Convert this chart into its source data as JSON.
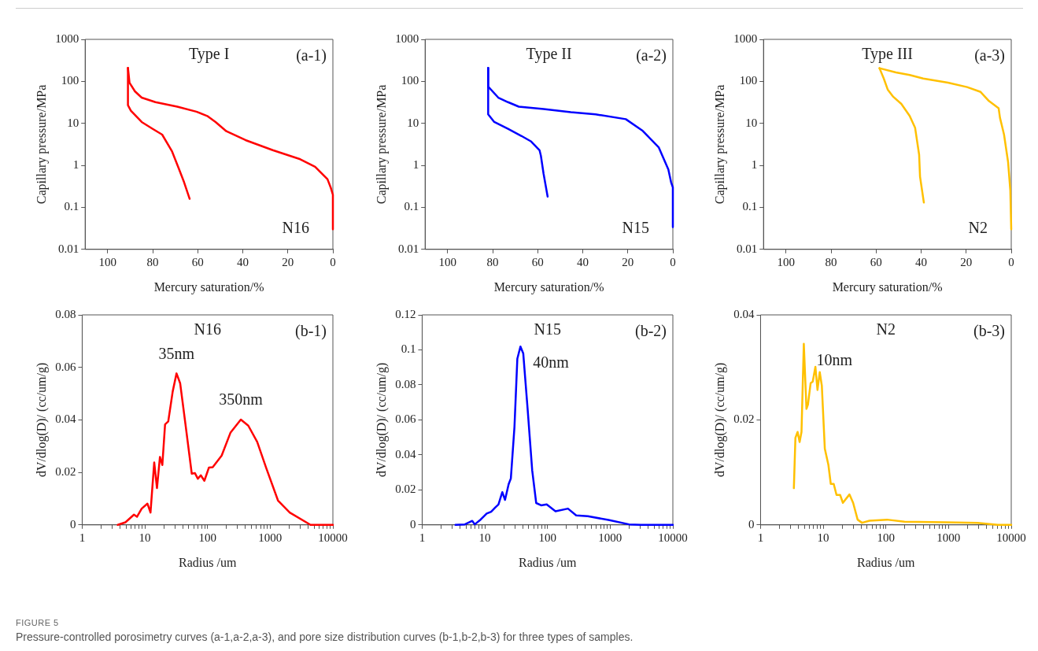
{
  "chart_data": [
    {
      "type": "line",
      "title": "Type I",
      "xlabel": "Mercury saturation/%",
      "ylabel": "Capillary pressure/MPa",
      "log": "y",
      "grid": false,
      "legend": false,
      "marker": "none",
      "line_style": "solid",
      "xlim": [
        110,
        0
      ],
      "xticks": [
        100,
        80,
        60,
        40,
        20,
        0
      ],
      "ylim": [
        0.01,
        1000
      ],
      "yticks": [
        0.01,
        0.1,
        1,
        10,
        100,
        1000
      ],
      "annotations": [
        "(a-1)",
        "N16"
      ],
      "series": [
        {
          "color": "#ff0000",
          "x": [
            0,
            0,
            1,
            2.4,
            7.9,
            14.5,
            26.7,
            38.8,
            47.3,
            52.1,
            55.8,
            60.6,
            69.1,
            78.8,
            84.9,
            87.9,
            90.3,
            91
          ],
          "values": [
            0.03,
            0.2,
            0.3,
            0.47,
            0.93,
            1.4,
            2.3,
            4.0,
            6.5,
            10.8,
            15,
            19,
            25,
            32,
            41,
            58,
            93,
            210
          ]
        },
        {
          "color": "#ff0000",
          "x": [
            91,
            91,
            89.7,
            84.9,
            80,
            75.8,
            71.5,
            68.5,
            66.1,
            63.6
          ],
          "values": [
            210,
            27,
            20,
            10.8,
            7.4,
            5.4,
            2.2,
            0.86,
            0.4,
            0.16
          ]
        }
      ]
    },
    {
      "type": "line",
      "title": "Type II",
      "xlabel": "Mercury saturation/%",
      "ylabel": "Capillary pressure/MPa",
      "log": "y",
      "grid": false,
      "legend": false,
      "marker": "none",
      "line_style": "solid",
      "xlim": [
        110,
        0
      ],
      "xticks": [
        100,
        80,
        60,
        40,
        20,
        0
      ],
      "ylim": [
        0.01,
        1000
      ],
      "yticks": [
        0.01,
        0.1,
        1,
        10,
        100,
        1000
      ],
      "annotations": [
        "(a-2)",
        "N15"
      ],
      "series": [
        {
          "color": "#0000ff",
          "x": [
            0,
            0,
            0.8,
            2.0,
            6.3,
            13.6,
            20.9,
            34.3,
            45.3,
            57.4,
            68.4,
            73.2,
            77.5,
            81.8,
            82
          ],
          "values": [
            0.034,
            0.3,
            0.4,
            0.8,
            2.7,
            6.8,
            12.6,
            16.4,
            18.5,
            22,
            25,
            32,
            41,
            73,
            210
          ]
        },
        {
          "color": "#0000ff",
          "x": [
            82,
            82,
            79.3,
            73.2,
            67.2,
            62.9,
            59.2,
            58.6,
            57.4,
            55.6
          ],
          "values": [
            210,
            16.4,
            10.8,
            7.4,
            5.0,
            3.7,
            2.3,
            1.7,
            0.63,
            0.18
          ]
        }
      ]
    },
    {
      "type": "line",
      "title": "Type III",
      "xlabel": "Mercury saturation/%",
      "ylabel": "Capillary pressure/MPa",
      "log": "y",
      "grid": false,
      "legend": false,
      "marker": "none",
      "line_style": "solid",
      "xlim": [
        110,
        0
      ],
      "xticks": [
        100,
        80,
        60,
        40,
        20,
        0
      ],
      "ylim": [
        0.01,
        1000
      ],
      "yticks": [
        0.01,
        0.1,
        1,
        10,
        100,
        1000
      ],
      "annotations": [
        "(a-3)",
        "N2"
      ],
      "series": [
        {
          "color": "#ffc000",
          "x": [
            0,
            0.4,
            1.4,
            3.2,
            5.0,
            5.6,
            9.9,
            13.6,
            19.6,
            28.1,
            39.1,
            45.1,
            51.2,
            58.5
          ],
          "values": [
            0.03,
            0.25,
            1.2,
            5.4,
            13.6,
            23,
            34,
            56,
            73,
            93,
            117,
            142,
            163,
            206
          ]
        },
        {
          "color": "#ffc000",
          "x": [
            58.5,
            56.6,
            54.8,
            52.4,
            48.8,
            45.1,
            42.7,
            40.9,
            40.5,
            38.8
          ],
          "values": [
            206,
            117,
            63,
            43,
            29,
            15,
            7.9,
            1.8,
            0.54,
            0.13
          ]
        }
      ]
    },
    {
      "type": "line",
      "title": "N16",
      "xlabel": "Radius /um",
      "ylabel": "dV/dlog(D)/ (cc/um/g)",
      "log": "x",
      "grid": false,
      "legend": false,
      "marker": "none",
      "line_style": "solid",
      "xlim": [
        1,
        10000
      ],
      "xticks": [
        1,
        {
          "value": 2,
          "label": null
        },
        {
          "value": 3,
          "label": null
        },
        {
          "value": 4,
          "label": null
        },
        {
          "value": 5,
          "label": null
        },
        {
          "value": 6,
          "label": null
        },
        {
          "value": 7,
          "label": null
        },
        {
          "value": 8,
          "label": null
        },
        {
          "value": 9,
          "label": null
        },
        10,
        {
          "value": 20,
          "label": null
        },
        {
          "value": 30,
          "label": null
        },
        {
          "value": 40,
          "label": null
        },
        {
          "value": 50,
          "label": null
        },
        {
          "value": 60,
          "label": null
        },
        {
          "value": 70,
          "label": null
        },
        {
          "value": 80,
          "label": null
        },
        {
          "value": 90,
          "label": null
        },
        100,
        {
          "value": 200,
          "label": null
        },
        {
          "value": 300,
          "label": null
        },
        {
          "value": 400,
          "label": null
        },
        {
          "value": 500,
          "label": null
        },
        {
          "value": 600,
          "label": null
        },
        {
          "value": 700,
          "label": null
        },
        {
          "value": 800,
          "label": null
        },
        {
          "value": 900,
          "label": null
        },
        1000,
        {
          "value": 2000,
          "label": null
        },
        {
          "value": 3000,
          "label": null
        },
        {
          "value": 4000,
          "label": null
        },
        {
          "value": 5000,
          "label": null
        },
        {
          "value": 6000,
          "label": null
        },
        {
          "value": 7000,
          "label": null
        },
        {
          "value": 8000,
          "label": null
        },
        {
          "value": 9000,
          "label": null
        },
        10000
      ],
      "ylim": [
        0,
        0.08
      ],
      "yticks": [
        0,
        0.02,
        0.04,
        0.06,
        0.08
      ],
      "annotations": [
        "(b-1)",
        {
          "text": "35nm",
          "x": 32,
          "y": 0.0577
        },
        {
          "text": "350nm",
          "x": 340,
          "y": 0.0401
        }
      ],
      "series": [
        {
          "color": "#ff0000",
          "x": [
            3.7,
            4.9,
            6.7,
            7.5,
            8.9,
            11,
            12.3,
            14.1,
            15.6,
            17.4,
            19,
            21,
            23.6,
            27.8,
            32,
            36.6,
            45,
            56,
            63,
            70,
            78,
            89,
            105,
            121,
            168,
            233,
            340,
            447,
            620,
            860,
            1330,
            2050,
            4400,
            10000
          ],
          "values": [
            0,
            0.001,
            0.0039,
            0.0031,
            0.0062,
            0.0081,
            0.0047,
            0.0238,
            0.014,
            0.0259,
            0.0228,
            0.0383,
            0.0394,
            0.0508,
            0.0577,
            0.0539,
            0.0373,
            0.0195,
            0.0197,
            0.0176,
            0.0189,
            0.0168,
            0.0218,
            0.022,
            0.0264,
            0.0352,
            0.0401,
            0.0378,
            0.0316,
            0.0218,
            0.0093,
            0.0047,
            0,
            0
          ]
        }
      ]
    },
    {
      "type": "line",
      "title": "N15",
      "xlabel": "Radius /um",
      "ylabel": "dV/dlog(D)/ (cc/um/g)",
      "log": "x",
      "grid": false,
      "legend": false,
      "marker": "none",
      "line_style": "solid",
      "xlim": [
        1,
        10000
      ],
      "xticks": [
        1,
        {
          "value": 2,
          "label": null
        },
        {
          "value": 3,
          "label": null
        },
        {
          "value": 4,
          "label": null
        },
        {
          "value": 5,
          "label": null
        },
        {
          "value": 6,
          "label": null
        },
        {
          "value": 7,
          "label": null
        },
        {
          "value": 8,
          "label": null
        },
        {
          "value": 9,
          "label": null
        },
        10,
        {
          "value": 20,
          "label": null
        },
        {
          "value": 30,
          "label": null
        },
        {
          "value": 40,
          "label": null
        },
        {
          "value": 50,
          "label": null
        },
        {
          "value": 60,
          "label": null
        },
        {
          "value": 70,
          "label": null
        },
        {
          "value": 80,
          "label": null
        },
        {
          "value": 90,
          "label": null
        },
        100,
        {
          "value": 200,
          "label": null
        },
        {
          "value": 300,
          "label": null
        },
        {
          "value": 400,
          "label": null
        },
        {
          "value": 500,
          "label": null
        },
        {
          "value": 600,
          "label": null
        },
        {
          "value": 700,
          "label": null
        },
        {
          "value": 800,
          "label": null
        },
        {
          "value": 900,
          "label": null
        },
        1000,
        {
          "value": 2000,
          "label": null
        },
        {
          "value": 3000,
          "label": null
        },
        {
          "value": 4000,
          "label": null
        },
        {
          "value": 5000,
          "label": null
        },
        {
          "value": 6000,
          "label": null
        },
        {
          "value": 7000,
          "label": null
        },
        {
          "value": 8000,
          "label": null
        },
        {
          "value": 9000,
          "label": null
        },
        10000
      ],
      "ylim": [
        0,
        0.12
      ],
      "yticks": [
        0,
        0.02,
        0.04,
        0.06,
        0.08,
        0.1,
        0.12
      ],
      "annotations": [
        "(b-2)",
        {
          "text": "40nm",
          "x": 37,
          "y": 0.1019
        }
      ],
      "series": [
        {
          "color": "#0000ff",
          "x": [
            3.4,
            4.8,
            6.3,
            6.9,
            8.6,
            10.7,
            12.6,
            14.8,
            16.5,
            19,
            21,
            24,
            26,
            29.7,
            33,
            37,
            41,
            48,
            57,
            66,
            79,
            97,
            134,
            212,
            287,
            440,
            940,
            2000,
            3100,
            10000
          ],
          "values": [
            0,
            0.0003,
            0.0023,
            0.0003,
            0.0031,
            0.0065,
            0.0075,
            0.0101,
            0.0117,
            0.0187,
            0.0143,
            0.0233,
            0.0265,
            0.056,
            0.0949,
            0.1019,
            0.098,
            0.0669,
            0.0311,
            0.0125,
            0.0112,
            0.0117,
            0.0078,
            0.0093,
            0.0054,
            0.005,
            0.0028,
            0.0003,
            0,
            0
          ]
        }
      ]
    },
    {
      "type": "line",
      "title": "N2",
      "xlabel": "Radius /um",
      "ylabel": "dV/dlog(D)/ (cc/um/g)",
      "log": "x",
      "grid": false,
      "legend": false,
      "marker": "none",
      "line_style": "solid",
      "xlim": [
        1,
        10000
      ],
      "xticks": [
        1,
        {
          "value": 2,
          "label": null
        },
        {
          "value": 3,
          "label": null
        },
        {
          "value": 4,
          "label": null
        },
        {
          "value": 5,
          "label": null
        },
        {
          "value": 6,
          "label": null
        },
        {
          "value": 7,
          "label": null
        },
        {
          "value": 8,
          "label": null
        },
        {
          "value": 9,
          "label": null
        },
        10,
        {
          "value": 20,
          "label": null
        },
        {
          "value": 30,
          "label": null
        },
        {
          "value": 40,
          "label": null
        },
        {
          "value": 50,
          "label": null
        },
        {
          "value": 60,
          "label": null
        },
        {
          "value": 70,
          "label": null
        },
        {
          "value": 80,
          "label": null
        },
        {
          "value": 90,
          "label": null
        },
        100,
        {
          "value": 200,
          "label": null
        },
        {
          "value": 300,
          "label": null
        },
        {
          "value": 400,
          "label": null
        },
        {
          "value": 500,
          "label": null
        },
        {
          "value": 600,
          "label": null
        },
        {
          "value": 700,
          "label": null
        },
        {
          "value": 800,
          "label": null
        },
        {
          "value": 900,
          "label": null
        },
        1000,
        {
          "value": 2000,
          "label": null
        },
        {
          "value": 3000,
          "label": null
        },
        {
          "value": 4000,
          "label": null
        },
        {
          "value": 5000,
          "label": null
        },
        {
          "value": 6000,
          "label": null
        },
        {
          "value": 7000,
          "label": null
        },
        {
          "value": 8000,
          "label": null
        },
        {
          "value": 9000,
          "label": null
        },
        10000
      ],
      "ylim": [
        0,
        0.04
      ],
      "yticks": [
        0,
        0.02,
        0.04
      ],
      "annotations": [
        "(b-3)",
        {
          "text": "10nm",
          "x": 4.9,
          "y": 0.0345
        }
      ],
      "series": [
        {
          "color": "#ffc000",
          "x": [
            3.4,
            3.6,
            3.9,
            4.2,
            4.5,
            4.9,
            5.4,
            5.7,
            6.3,
            6.8,
            7.5,
            8.1,
            8.8,
            9.5,
            10.6,
            12.1,
            13.2,
            14.7,
            16.3,
            18.6,
            20.6,
            26.2,
            30,
            35.4,
            41.6,
            54.6,
            104,
            198,
            890,
            2900,
            6100,
            10000
          ],
          "values": [
            0.007,
            0.0166,
            0.0177,
            0.0158,
            0.0177,
            0.0345,
            0.0221,
            0.0229,
            0.027,
            0.0273,
            0.0301,
            0.0257,
            0.0291,
            0.0265,
            0.0145,
            0.0114,
            0.0078,
            0.0078,
            0.0057,
            0.0057,
            0.0042,
            0.0058,
            0.0042,
            0.001,
            0.0004,
            0.0008,
            0.001,
            0.0006,
            0.0005,
            0.0004,
            0,
            0
          ]
        }
      ]
    },
    {
      "type": "other",
      "title": "FIGURE 5",
      "annotations": [
        "Pressure-controlled porosimetry curves (a-1,a-2,a-3), and pore size distribution curves (b-1,b-2,b-3) for three types of samples."
      ]
    }
  ]
}
